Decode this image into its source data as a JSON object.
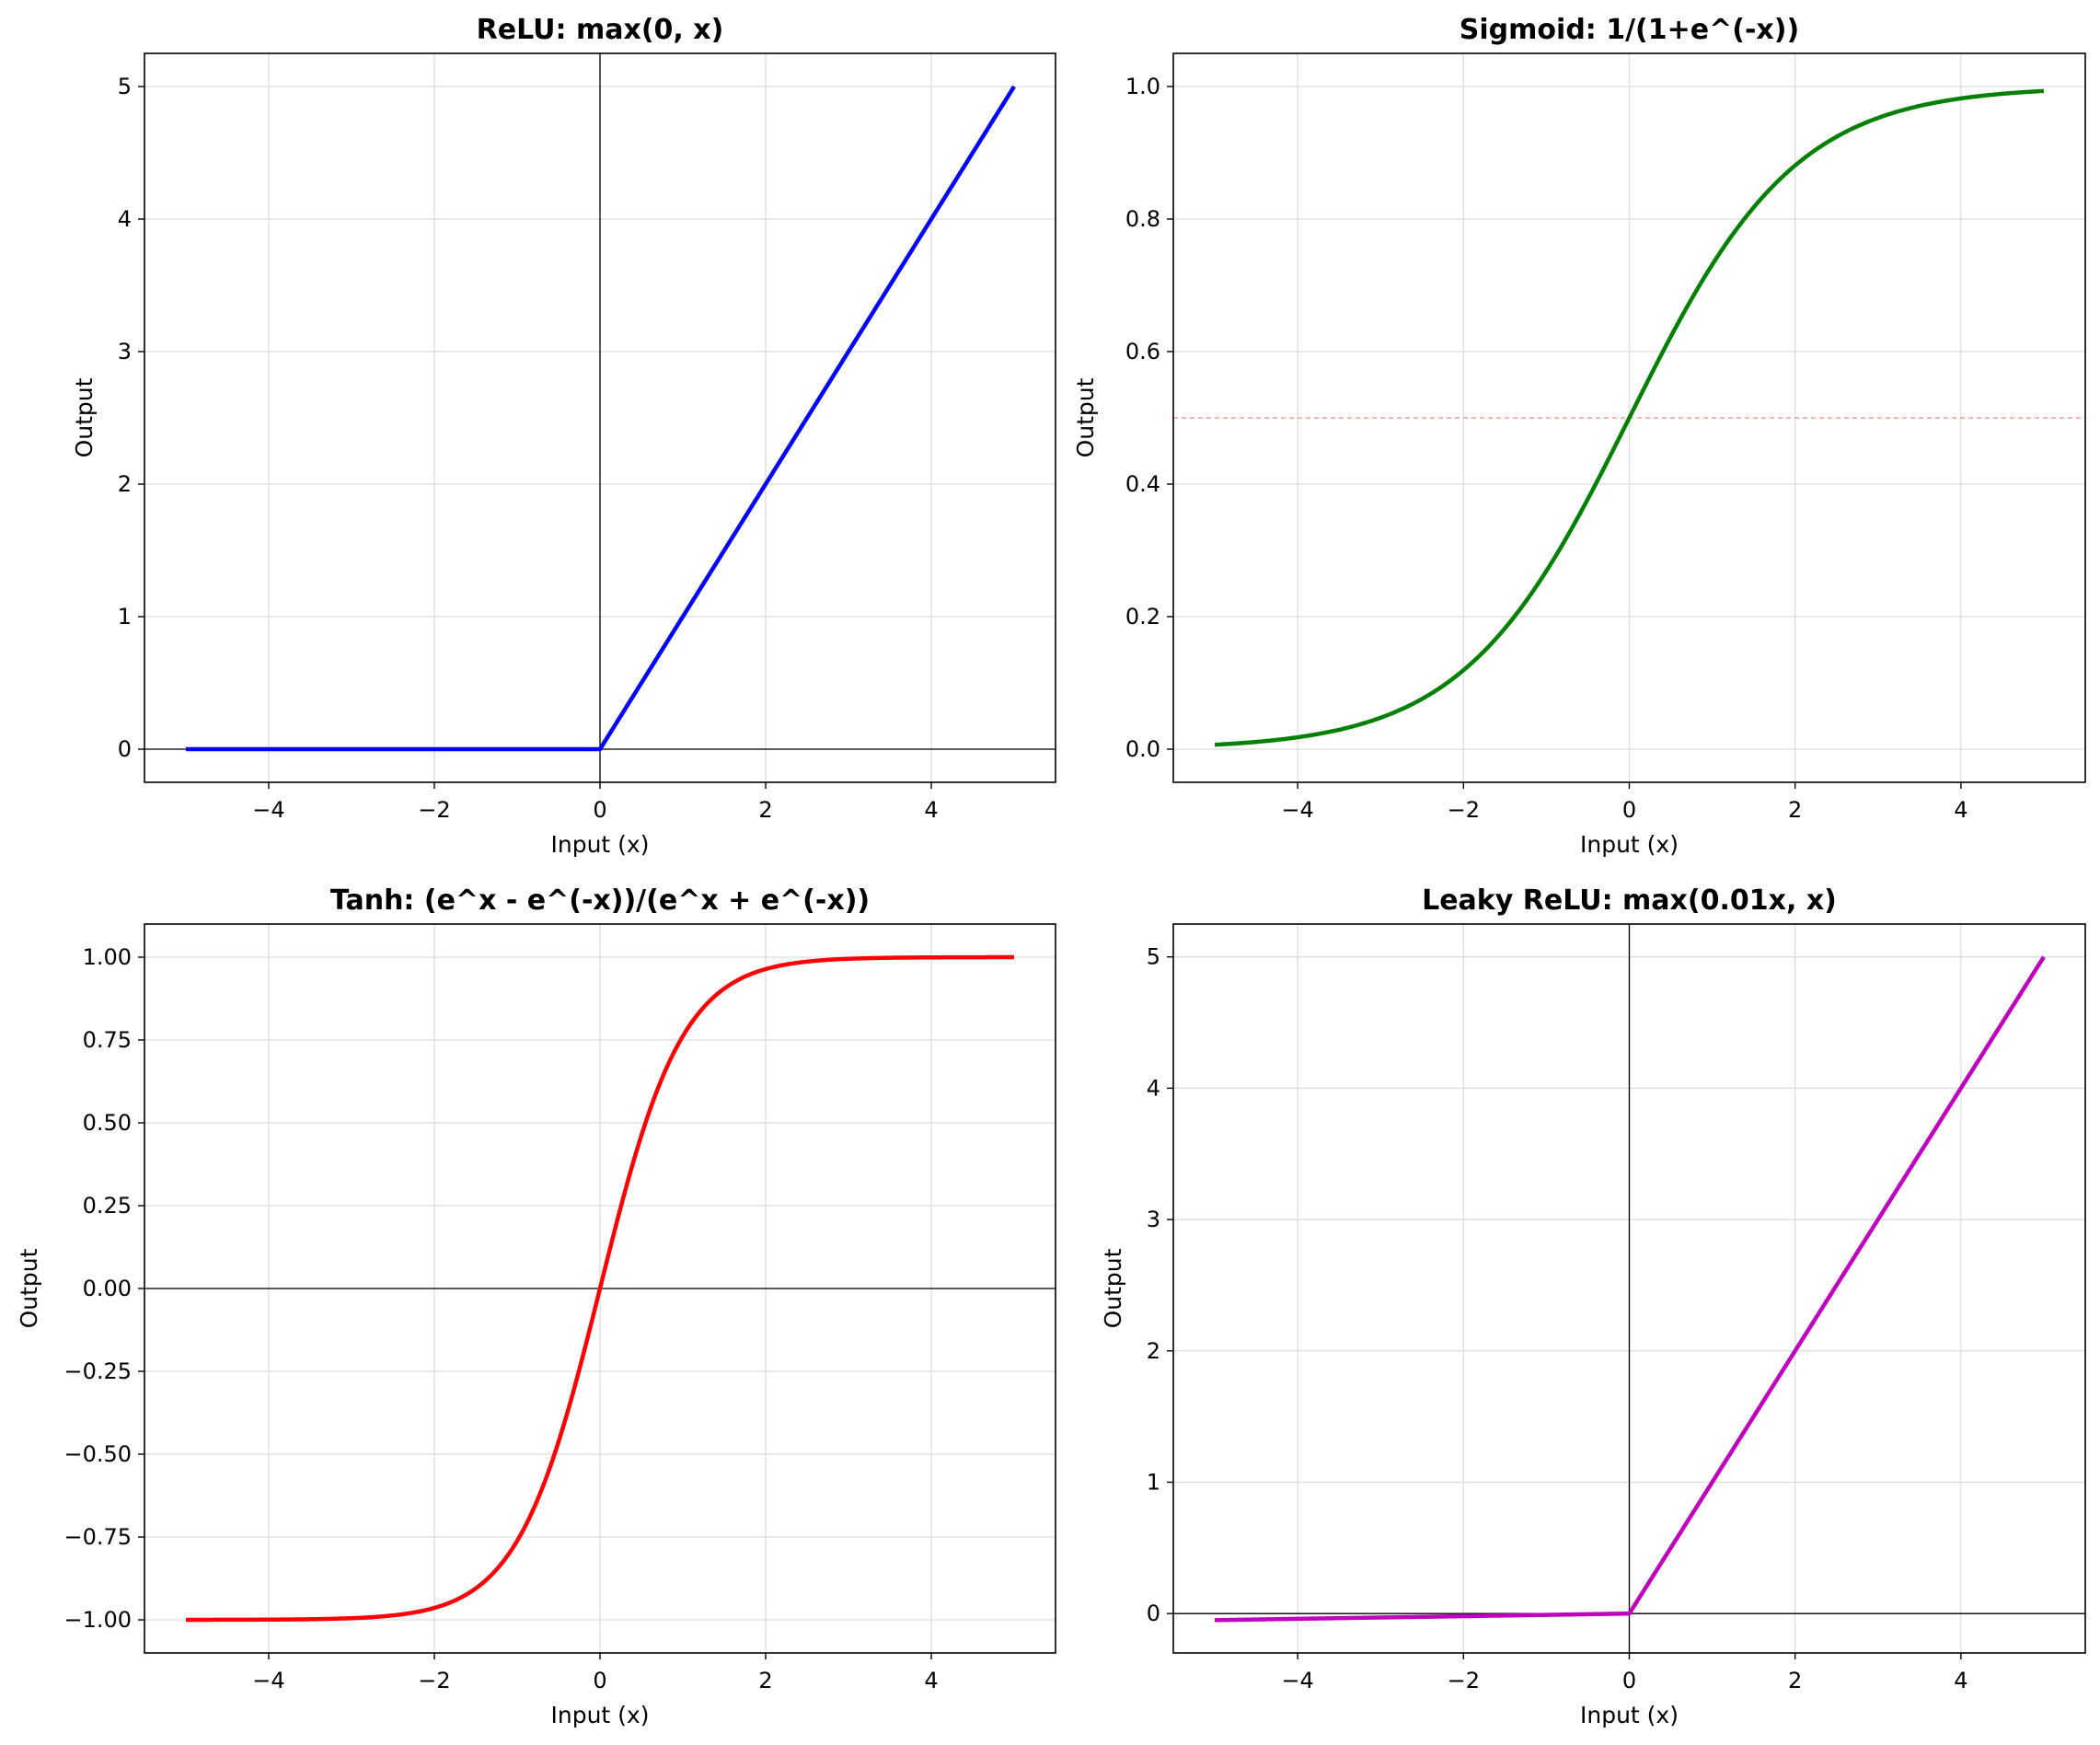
{
  "chart_data": [
    {
      "type": "line",
      "function": "relu",
      "title": "ReLU: max(0, x)",
      "xlabel": "Input (x)",
      "ylabel": "Output",
      "xlim": [
        -5.5,
        5.5
      ],
      "ylim": [
        -0.25,
        5.25
      ],
      "xticks": [
        -4,
        -2,
        0,
        2,
        4
      ],
      "xtick_labels": [
        "−4",
        "−2",
        "0",
        "2",
        "4"
      ],
      "yticks": [
        0,
        1,
        2,
        3,
        4,
        5
      ],
      "ytick_labels": [
        "0",
        "1",
        "2",
        "3",
        "4",
        "5"
      ],
      "grid": true,
      "reference_lines": [
        {
          "orientation": "horizontal",
          "value": 0,
          "color": "#000000",
          "style": "solid"
        },
        {
          "orientation": "vertical",
          "value": 0,
          "color": "#000000",
          "style": "solid"
        }
      ],
      "series": [
        {
          "color": "#0000ff",
          "x": [
            -5,
            -4,
            -3,
            -2,
            -1,
            0,
            1,
            2,
            3,
            4,
            5
          ],
          "y": [
            0,
            0,
            0,
            0,
            0,
            0,
            1,
            2,
            3,
            4,
            5
          ]
        }
      ]
    },
    {
      "type": "line",
      "function": "sigmoid",
      "title": "Sigmoid: 1/(1+e^(-x))",
      "xlabel": "Input (x)",
      "ylabel": "Output",
      "xlim": [
        -5.5,
        5.5
      ],
      "ylim": [
        -0.05,
        1.05
      ],
      "xticks": [
        -4,
        -2,
        0,
        2,
        4
      ],
      "xtick_labels": [
        "−4",
        "−2",
        "0",
        "2",
        "4"
      ],
      "yticks": [
        0,
        0.2,
        0.4,
        0.6,
        0.8,
        1.0
      ],
      "ytick_labels": [
        "0.0",
        "0.2",
        "0.4",
        "0.6",
        "0.8",
        "1.0"
      ],
      "grid": true,
      "reference_lines": [
        {
          "orientation": "horizontal",
          "value": 0.5,
          "color": "#e07060",
          "style": "dashed"
        }
      ],
      "series": [
        {
          "color": "#008000",
          "x": [
            -5,
            -4,
            -3,
            -2,
            -1,
            0,
            1,
            2,
            3,
            4,
            5
          ],
          "y": [
            0.0067,
            0.018,
            0.047,
            0.119,
            0.269,
            0.5,
            0.731,
            0.881,
            0.953,
            0.982,
            0.9933
          ]
        }
      ]
    },
    {
      "type": "line",
      "function": "tanh",
      "title": "Tanh: (e^x - e^(-x))/(e^x + e^(-x))",
      "xlabel": "Input (x)",
      "ylabel": "Output",
      "xlim": [
        -5.5,
        5.5
      ],
      "ylim": [
        -1.1,
        1.1
      ],
      "xticks": [
        -4,
        -2,
        0,
        2,
        4
      ],
      "xtick_labels": [
        "−4",
        "−2",
        "0",
        "2",
        "4"
      ],
      "yticks": [
        -1.0,
        -0.75,
        -0.5,
        -0.25,
        0.0,
        0.25,
        0.5,
        0.75,
        1.0
      ],
      "ytick_labels": [
        "−1.00",
        "−0.75",
        "−0.50",
        "−0.25",
        "0.00",
        "0.25",
        "0.50",
        "0.75",
        "1.00"
      ],
      "grid": true,
      "reference_lines": [
        {
          "orientation": "horizontal",
          "value": 0,
          "color": "#000000",
          "style": "solid"
        }
      ],
      "series": [
        {
          "color": "#ff0000",
          "x": [
            -5,
            -4,
            -3,
            -2,
            -1,
            0,
            1,
            2,
            3,
            4,
            5
          ],
          "y": [
            -0.9999,
            -0.9993,
            -0.995,
            -0.964,
            -0.762,
            0,
            0.762,
            0.964,
            0.995,
            0.9993,
            0.9999
          ]
        }
      ]
    },
    {
      "type": "line",
      "function": "leaky_relu",
      "title": "Leaky ReLU: max(0.01x, x)",
      "xlabel": "Input (x)",
      "ylabel": "Output",
      "xlim": [
        -5.5,
        5.5
      ],
      "ylim": [
        -0.3,
        5.25
      ],
      "xticks": [
        -4,
        -2,
        0,
        2,
        4
      ],
      "xtick_labels": [
        "−4",
        "−2",
        "0",
        "2",
        "4"
      ],
      "yticks": [
        0,
        1,
        2,
        3,
        4,
        5
      ],
      "ytick_labels": [
        "0",
        "1",
        "2",
        "3",
        "4",
        "5"
      ],
      "grid": true,
      "reference_lines": [
        {
          "orientation": "horizontal",
          "value": 0,
          "color": "#000000",
          "style": "solid"
        },
        {
          "orientation": "vertical",
          "value": 0,
          "color": "#000000",
          "style": "solid"
        }
      ],
      "series": [
        {
          "color": "#bf00bf",
          "x": [
            -5,
            -4,
            -3,
            -2,
            -1,
            0,
            1,
            2,
            3,
            4,
            5
          ],
          "y": [
            -0.05,
            -0.04,
            -0.03,
            -0.02,
            -0.01,
            0,
            1,
            2,
            3,
            4,
            5
          ]
        }
      ]
    }
  ]
}
